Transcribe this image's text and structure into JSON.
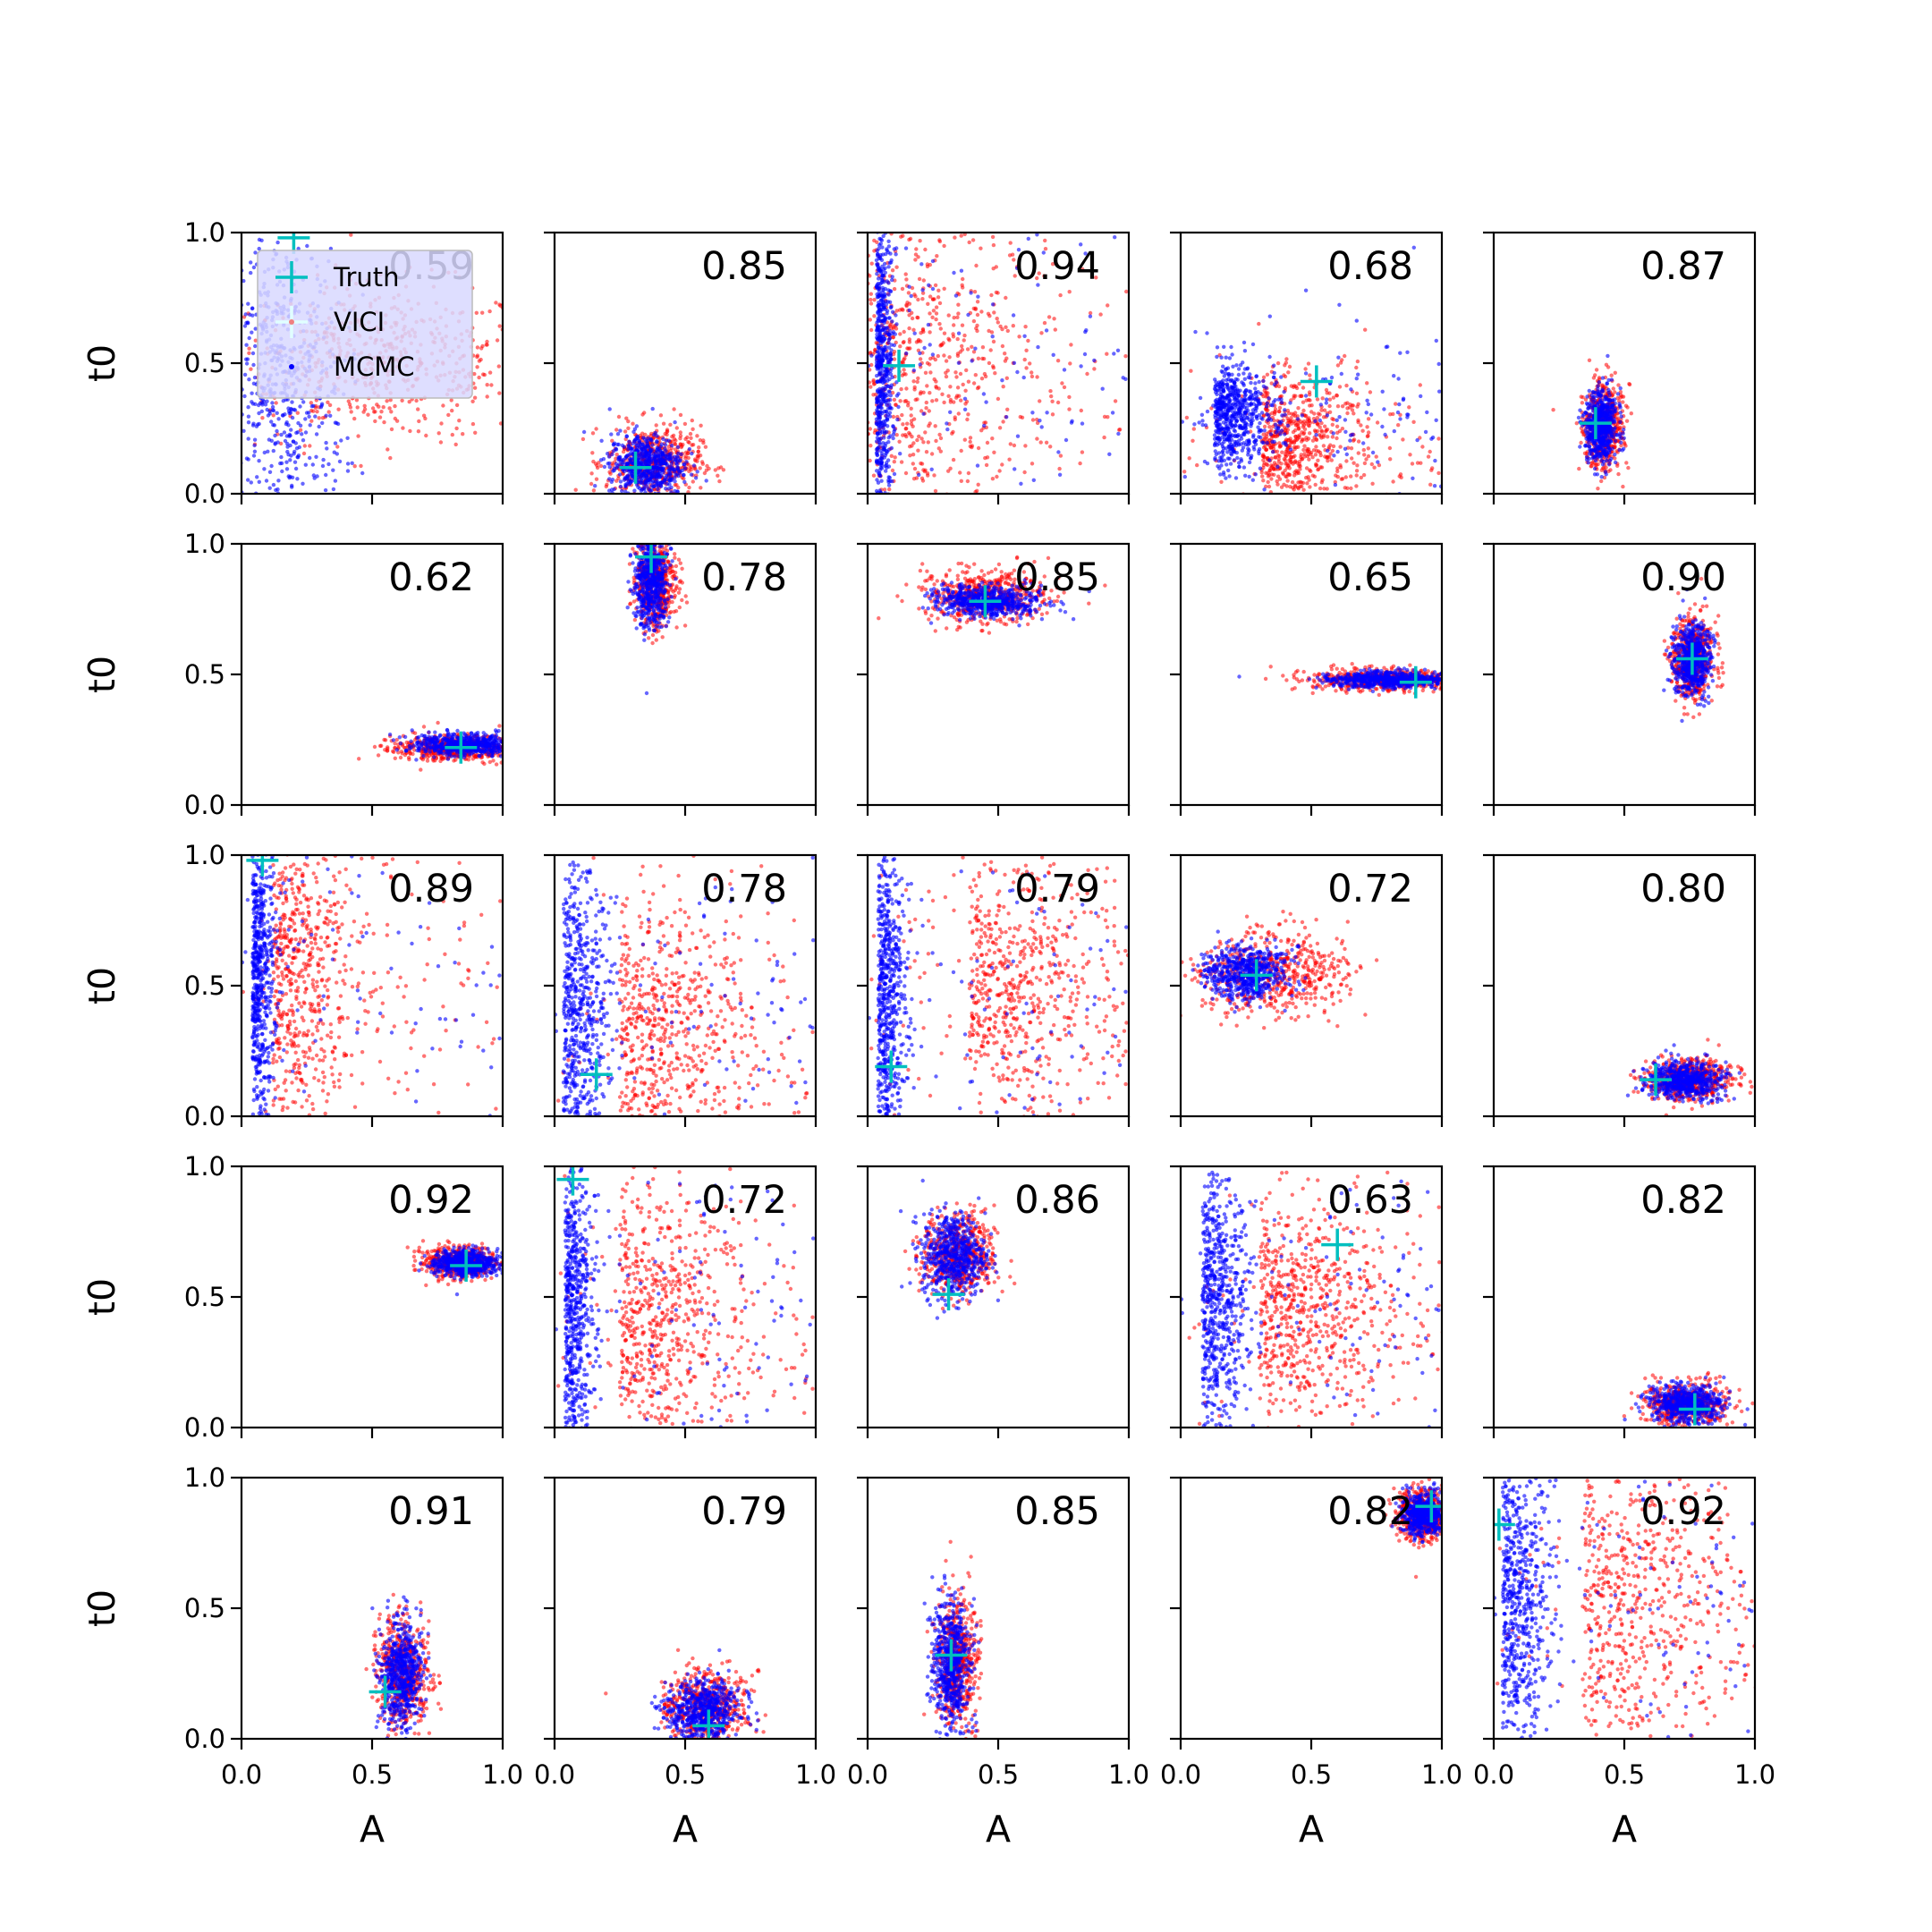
{
  "figure": {
    "type": "scatter-grid",
    "rows": 5,
    "cols": 5,
    "xlabel": "A",
    "ylabel": "t0",
    "xlim": [
      0,
      1
    ],
    "ylim": [
      0,
      1
    ],
    "xticks": [
      "0.0",
      "0.5",
      "1.0"
    ],
    "yticks": [
      "0.0",
      "0.5",
      "1.0"
    ],
    "colors": {
      "vici": "#ff0000",
      "mcmc": "#0000ff",
      "truth": "#00bfbf",
      "legend_bg": "#d8d8ff"
    },
    "legend": {
      "position": "top-left of first panel",
      "items": [
        "Truth",
        "VICI",
        "MCMC"
      ]
    }
  },
  "chart_data": [
    {
      "type": "scatter",
      "score": "0.59",
      "truth": [
        0.2,
        0.98
      ],
      "shape": "wide",
      "vici": {
        "cx": 0.55,
        "cy": 0.5,
        "sx": 0.3,
        "sy": 0.15
      },
      "mcmc": {
        "cx": 0.15,
        "cy": 0.4,
        "sx": 0.12,
        "sy": 0.3
      }
    },
    {
      "type": "scatter",
      "score": "0.85",
      "truth": [
        0.31,
        0.1
      ],
      "shape": "blob",
      "vici": {
        "cx": 0.38,
        "cy": 0.12,
        "sx": 0.09,
        "sy": 0.07
      },
      "mcmc": {
        "cx": 0.35,
        "cy": 0.11,
        "sx": 0.07,
        "sy": 0.06
      }
    },
    {
      "type": "scatter",
      "score": "0.94",
      "truth": [
        0.12,
        0.49
      ],
      "shape": "wall",
      "vici": {
        "cx": 0.06,
        "cy": 0.5,
        "sx": 0.3,
        "sy": 0.3
      },
      "mcmc": {
        "cx": 0.04,
        "cy": 0.5,
        "sx": 0.03,
        "sy": 0.3
      }
    },
    {
      "type": "scatter",
      "score": "0.68",
      "truth": [
        0.52,
        0.43
      ],
      "shape": "wall",
      "vici": {
        "cx": 0.35,
        "cy": 0.2,
        "sx": 0.2,
        "sy": 0.12
      },
      "mcmc": {
        "cx": 0.15,
        "cy": 0.3,
        "sx": 0.1,
        "sy": 0.1
      }
    },
    {
      "type": "scatter",
      "score": "0.87",
      "truth": [
        0.39,
        0.27
      ],
      "shape": "blob",
      "vici": {
        "cx": 0.42,
        "cy": 0.26,
        "sx": 0.04,
        "sy": 0.08
      },
      "mcmc": {
        "cx": 0.41,
        "cy": 0.26,
        "sx": 0.03,
        "sy": 0.07
      }
    },
    {
      "type": "scatter",
      "score": "0.62",
      "truth": [
        0.84,
        0.22
      ],
      "shape": "blob",
      "vici": {
        "cx": 0.82,
        "cy": 0.22,
        "sx": 0.12,
        "sy": 0.025
      },
      "mcmc": {
        "cx": 0.86,
        "cy": 0.23,
        "sx": 0.1,
        "sy": 0.02
      }
    },
    {
      "type": "scatter",
      "score": "0.78",
      "truth": [
        0.37,
        0.95
      ],
      "shape": "blob",
      "vici": {
        "cx": 0.39,
        "cy": 0.85,
        "sx": 0.04,
        "sy": 0.09
      },
      "mcmc": {
        "cx": 0.37,
        "cy": 0.86,
        "sx": 0.03,
        "sy": 0.09
      }
    },
    {
      "type": "scatter",
      "score": "0.85",
      "truth": [
        0.45,
        0.78
      ],
      "shape": "blob",
      "vici": {
        "cx": 0.45,
        "cy": 0.8,
        "sx": 0.12,
        "sy": 0.05
      },
      "mcmc": {
        "cx": 0.47,
        "cy": 0.78,
        "sx": 0.1,
        "sy": 0.03
      }
    },
    {
      "type": "scatter",
      "score": "0.65",
      "truth": [
        0.9,
        0.47
      ],
      "shape": "blob",
      "vici": {
        "cx": 0.78,
        "cy": 0.48,
        "sx": 0.16,
        "sy": 0.02
      },
      "mcmc": {
        "cx": 0.8,
        "cy": 0.48,
        "sx": 0.12,
        "sy": 0.015
      }
    },
    {
      "type": "scatter",
      "score": "0.90",
      "truth": [
        0.76,
        0.56
      ],
      "shape": "blob",
      "vici": {
        "cx": 0.76,
        "cy": 0.56,
        "sx": 0.04,
        "sy": 0.08
      },
      "mcmc": {
        "cx": 0.76,
        "cy": 0.56,
        "sx": 0.035,
        "sy": 0.07
      }
    },
    {
      "type": "scatter",
      "score": "0.89",
      "truth": [
        0.08,
        0.98
      ],
      "shape": "wall",
      "vici": {
        "cx": 0.15,
        "cy": 0.55,
        "sx": 0.15,
        "sy": 0.3
      },
      "mcmc": {
        "cx": 0.05,
        "cy": 0.6,
        "sx": 0.04,
        "sy": 0.3
      }
    },
    {
      "type": "scatter",
      "score": "0.78",
      "truth": [
        0.16,
        0.16
      ],
      "shape": "wall",
      "vici": {
        "cx": 0.3,
        "cy": 0.3,
        "sx": 0.25,
        "sy": 0.25
      },
      "mcmc": {
        "cx": 0.05,
        "cy": 0.4,
        "sx": 0.08,
        "sy": 0.3
      }
    },
    {
      "type": "scatter",
      "score": "0.79",
      "truth": [
        0.09,
        0.19
      ],
      "shape": "wall",
      "vici": {
        "cx": 0.45,
        "cy": 0.5,
        "sx": 0.3,
        "sy": 0.25
      },
      "mcmc": {
        "cx": 0.05,
        "cy": 0.45,
        "sx": 0.05,
        "sy": 0.3
      }
    },
    {
      "type": "scatter",
      "score": "0.72",
      "truth": [
        0.29,
        0.54
      ],
      "shape": "blob",
      "vici": {
        "cx": 0.35,
        "cy": 0.55,
        "sx": 0.15,
        "sy": 0.08
      },
      "mcmc": {
        "cx": 0.25,
        "cy": 0.55,
        "sx": 0.08,
        "sy": 0.05
      }
    },
    {
      "type": "scatter",
      "score": "0.80",
      "truth": [
        0.62,
        0.14
      ],
      "shape": "blob",
      "vici": {
        "cx": 0.75,
        "cy": 0.14,
        "sx": 0.08,
        "sy": 0.04
      },
      "mcmc": {
        "cx": 0.73,
        "cy": 0.14,
        "sx": 0.07,
        "sy": 0.035
      }
    },
    {
      "type": "scatter",
      "score": "0.92",
      "truth": [
        0.86,
        0.62
      ],
      "shape": "blob",
      "vici": {
        "cx": 0.84,
        "cy": 0.63,
        "sx": 0.07,
        "sy": 0.03
      },
      "mcmc": {
        "cx": 0.86,
        "cy": 0.63,
        "sx": 0.06,
        "sy": 0.025
      }
    },
    {
      "type": "scatter",
      "score": "0.72",
      "truth": [
        0.07,
        0.95
      ],
      "shape": "wall",
      "vici": {
        "cx": 0.3,
        "cy": 0.4,
        "sx": 0.25,
        "sy": 0.25
      },
      "mcmc": {
        "cx": 0.05,
        "cy": 0.45,
        "sx": 0.05,
        "sy": 0.3
      }
    },
    {
      "type": "scatter",
      "score": "0.86",
      "truth": [
        0.31,
        0.51
      ],
      "shape": "blob",
      "vici": {
        "cx": 0.35,
        "cy": 0.66,
        "sx": 0.07,
        "sy": 0.08
      },
      "mcmc": {
        "cx": 0.33,
        "cy": 0.66,
        "sx": 0.06,
        "sy": 0.08
      }
    },
    {
      "type": "scatter",
      "score": "0.63",
      "truth": [
        0.6,
        0.7
      ],
      "shape": "wall",
      "vici": {
        "cx": 0.35,
        "cy": 0.45,
        "sx": 0.25,
        "sy": 0.2
      },
      "mcmc": {
        "cx": 0.1,
        "cy": 0.5,
        "sx": 0.08,
        "sy": 0.25
      }
    },
    {
      "type": "scatter",
      "score": "0.82",
      "truth": [
        0.77,
        0.07
      ],
      "shape": "blob",
      "vici": {
        "cx": 0.74,
        "cy": 0.09,
        "sx": 0.08,
        "sy": 0.04
      },
      "mcmc": {
        "cx": 0.74,
        "cy": 0.09,
        "sx": 0.07,
        "sy": 0.035
      }
    },
    {
      "type": "scatter",
      "score": "0.91",
      "truth": [
        0.55,
        0.18
      ],
      "shape": "blob",
      "vici": {
        "cx": 0.62,
        "cy": 0.25,
        "sx": 0.05,
        "sy": 0.1
      },
      "mcmc": {
        "cx": 0.61,
        "cy": 0.25,
        "sx": 0.04,
        "sy": 0.1
      }
    },
    {
      "type": "scatter",
      "score": "0.79",
      "truth": [
        0.59,
        0.05
      ],
      "shape": "blob",
      "vici": {
        "cx": 0.58,
        "cy": 0.12,
        "sx": 0.08,
        "sy": 0.07
      },
      "mcmc": {
        "cx": 0.57,
        "cy": 0.11,
        "sx": 0.07,
        "sy": 0.06
      }
    },
    {
      "type": "scatter",
      "score": "0.85",
      "truth": [
        0.32,
        0.32
      ],
      "shape": "blob",
      "vici": {
        "cx": 0.34,
        "cy": 0.3,
        "sx": 0.04,
        "sy": 0.12
      },
      "mcmc": {
        "cx": 0.32,
        "cy": 0.28,
        "sx": 0.035,
        "sy": 0.12
      }
    },
    {
      "type": "scatter",
      "score": "0.82",
      "truth": [
        0.96,
        0.89
      ],
      "shape": "blob",
      "vici": {
        "cx": 0.93,
        "cy": 0.86,
        "sx": 0.05,
        "sy": 0.05
      },
      "mcmc": {
        "cx": 0.93,
        "cy": 0.86,
        "sx": 0.04,
        "sy": 0.04
      }
    },
    {
      "type": "scatter",
      "score": "0.92",
      "truth": [
        0.02,
        0.82
      ],
      "shape": "wall",
      "vici": {
        "cx": 0.4,
        "cy": 0.5,
        "sx": 0.3,
        "sy": 0.3
      },
      "mcmc": {
        "cx": 0.05,
        "cy": 0.55,
        "sx": 0.08,
        "sy": 0.3
      }
    }
  ]
}
